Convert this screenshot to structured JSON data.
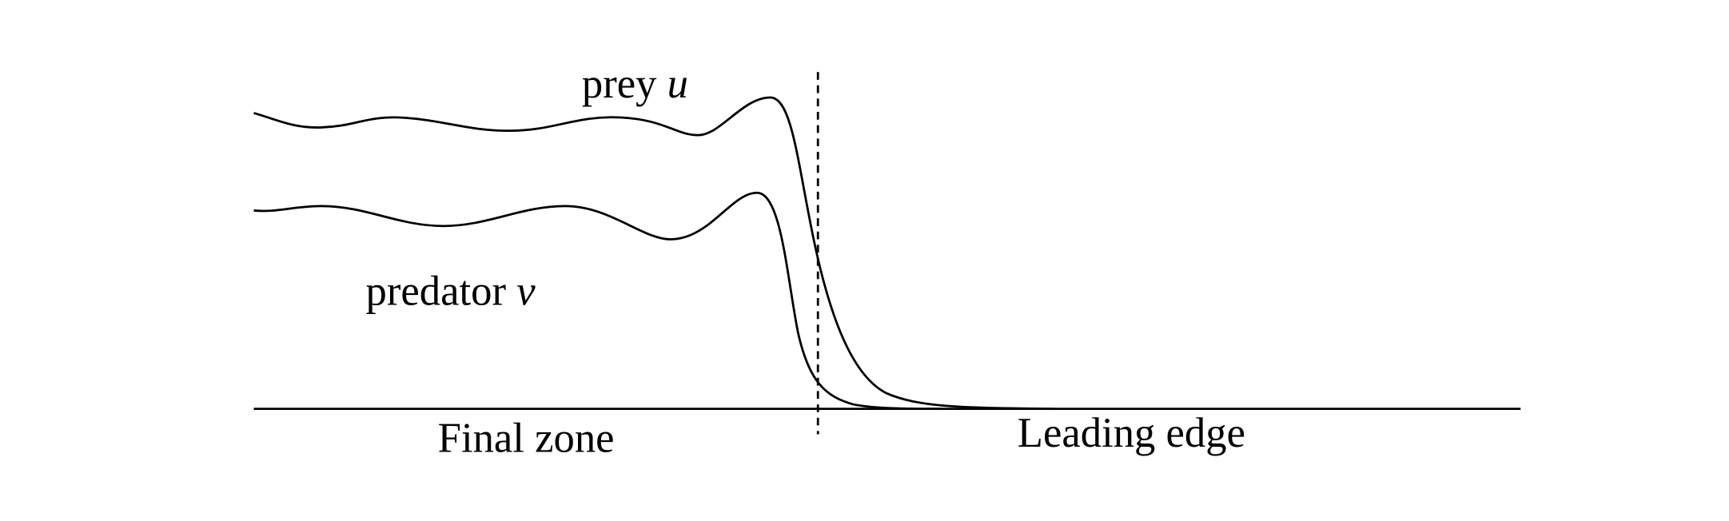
{
  "labels": {
    "prey": {
      "word": "prey",
      "symbol": "u"
    },
    "predator": {
      "word": "predator",
      "symbol": "v"
    },
    "final_zone": "Final zone",
    "leading_edge": "Leading edge"
  }
}
